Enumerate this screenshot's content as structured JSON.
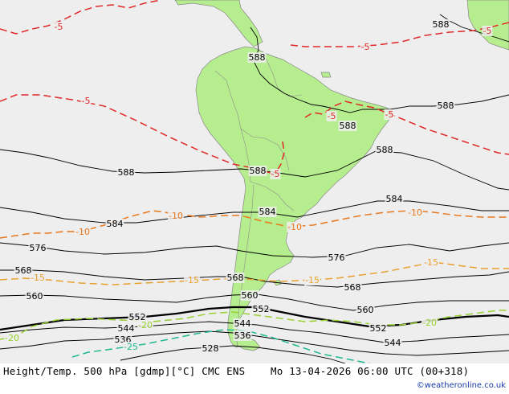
{
  "footer": {
    "title": "Height/Temp. 500 hPa [gdmp][°C] CMC ENS",
    "datetime": "Mo 13-04-2026 06:00 UTC (00+318)",
    "credit": "©weatheronline.co.uk"
  },
  "colors": {
    "ocean": "#eeeeee",
    "land": "#b6ed8e",
    "height_contour": "#000000",
    "temp_minus5": "#e02828",
    "temp_minus10": "#e8781e",
    "temp_minus15": "#e8a030",
    "temp_minus20": "#98d030",
    "temp_minus25": "#20b890"
  },
  "height_labels": [
    "588",
    "588",
    "588",
    "588",
    "588",
    "588",
    "588",
    "584",
    "584",
    "584",
    "576",
    "576",
    "568",
    "568",
    "568",
    "560",
    "560",
    "560",
    "552",
    "552",
    "552",
    "544",
    "544",
    "544",
    "536",
    "536",
    "528"
  ],
  "temp_labels": [
    "-5",
    "-5",
    "-5",
    "-5",
    "-5",
    "-5",
    "-5",
    "-10",
    "-10",
    "-10",
    "-10",
    "-15",
    "-15",
    "-15",
    "-15",
    "-20",
    "-20",
    "-20",
    "-25"
  ]
}
